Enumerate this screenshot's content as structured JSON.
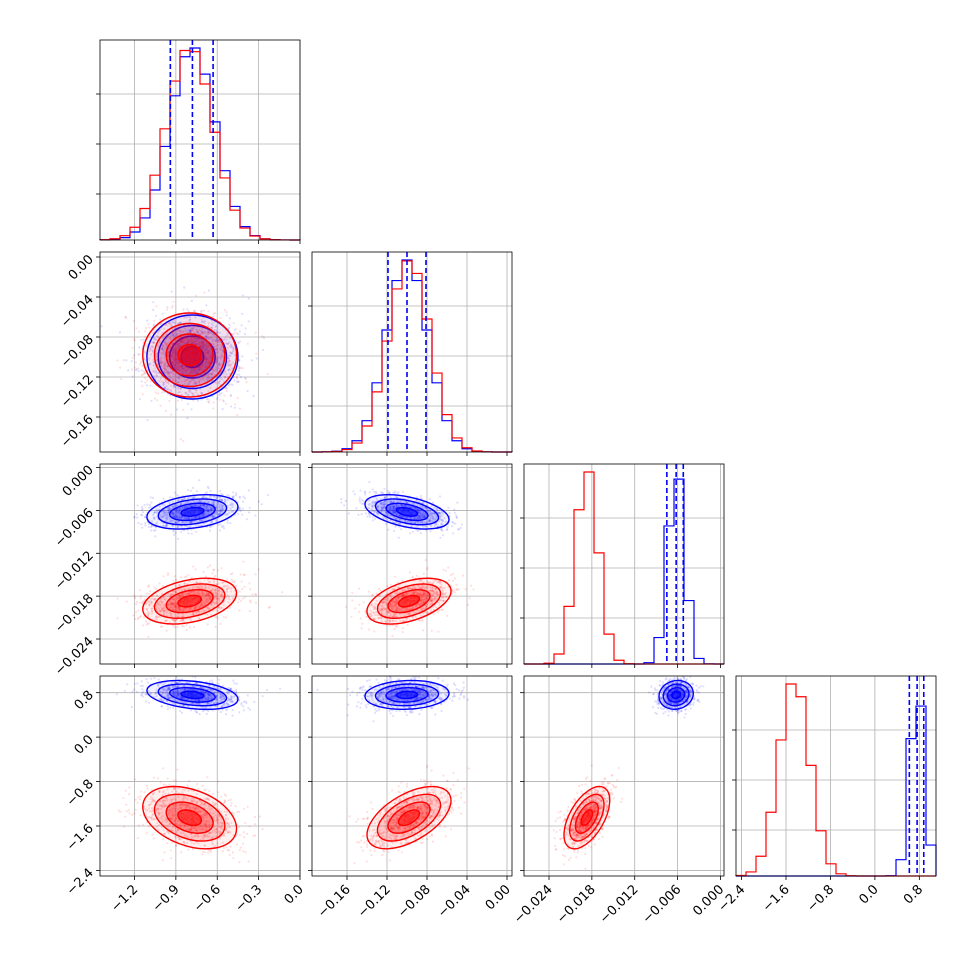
{
  "chart_data": {
    "type": "corner",
    "title": "",
    "grid": true,
    "parameters": [
      {
        "range": [
          -1.45,
          0.0
        ],
        "ticks": [
          -1.2,
          -0.9,
          -0.6,
          -0.3,
          0.0
        ],
        "tick_labels": [
          "−1.2",
          "−0.9",
          "−0.6",
          "−0.3",
          "0.0"
        ]
      },
      {
        "range": [
          -0.195,
          0.005
        ],
        "ticks": [
          -0.16,
          -0.12,
          -0.08,
          -0.04,
          0.0
        ],
        "tick_labels": [
          "−0.16",
          "−0.12",
          "−0.08",
          "−0.04",
          "0.00"
        ]
      },
      {
        "range": [
          -0.0275,
          0.0005
        ],
        "ticks": [
          -0.024,
          -0.018,
          -0.012,
          -0.006,
          0.0
        ],
        "tick_labels": [
          "−0.024",
          "−0.018",
          "−0.012",
          "−0.006",
          "0.000"
        ]
      },
      {
        "range": [
          -2.5,
          1.1
        ],
        "ticks": [
          -2.4,
          -1.6,
          -0.8,
          0.0,
          0.8
        ],
        "tick_labels": [
          "−2.4",
          "−1.6",
          "−0.8",
          "0.0",
          "0.8"
        ]
      }
    ],
    "series": [
      {
        "color": "#0000ff",
        "quantiles": [
          [
            -0.94,
            -0.78,
            -0.63
          ],
          [
            -0.119,
            -0.1,
            -0.081
          ],
          [
            -0.0075,
            -0.0062,
            -0.0052
          ],
          [
            0.62,
            0.76,
            0.88
          ]
        ],
        "mean": [
          -0.78,
          -0.1,
          -0.0062,
          0.76
        ],
        "std": [
          0.165,
          0.021,
          0.0012,
          0.13
        ],
        "corr": [
          [
            1,
            0.0,
            0.3,
            -0.3
          ],
          [
            0.0,
            1,
            -0.45,
            0.1
          ],
          [
            0.3,
            -0.45,
            1,
            0.1
          ],
          [
            -0.3,
            0.1,
            0.1,
            1
          ]
        ]
      },
      {
        "color": "#ff0000",
        "quantiles": null,
        "mean": [
          -0.8,
          -0.098,
          -0.0187,
          -1.45
        ],
        "std": [
          0.17,
          0.021,
          0.0016,
          0.28
        ],
        "corr": [
          [
            1,
            0.0,
            0.35,
            -0.35
          ],
          [
            0.0,
            1,
            0.45,
            0.55
          ],
          [
            0.35,
            0.45,
            1,
            0.55
          ],
          [
            -0.35,
            0.55,
            0.55,
            1
          ]
        ]
      }
    ]
  }
}
